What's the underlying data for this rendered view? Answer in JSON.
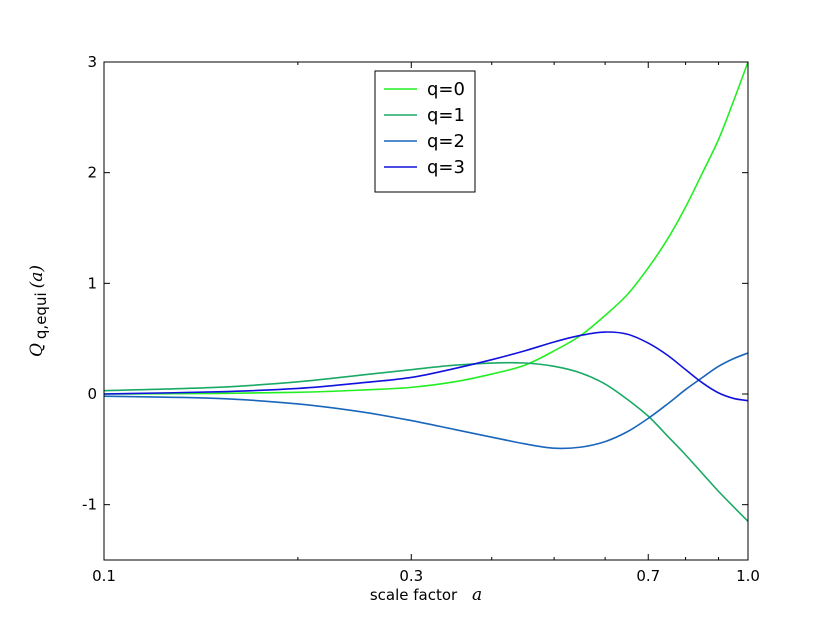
{
  "chart_data": {
    "type": "line",
    "xscale": "log",
    "xlim": [
      0.1,
      1.0
    ],
    "ylim": [
      -1.5,
      3
    ],
    "xticks": [
      0.1,
      0.3,
      0.7,
      1.0
    ],
    "xtick_labels": [
      "0.1",
      "0.3",
      "0.7",
      "1.0"
    ],
    "xminor_ticks": [
      0.2,
      0.4,
      0.5,
      0.6,
      0.8,
      0.9
    ],
    "yticks": [
      -1,
      0,
      1,
      2,
      3
    ],
    "ytick_labels": [
      "-1",
      "0",
      "1",
      "2",
      "3"
    ],
    "xlabel": "scale factor",
    "xlabel_math": "a",
    "ylabel": "Q_{q,equi}(a)",
    "ylabel_main": "Q",
    "ylabel_sub": "q,equi",
    "ylabel_arg": "(a)",
    "grid": false,
    "legend_position": "upper center",
    "series": [
      {
        "name": "q=0",
        "color": "#22ee22",
        "x": [
          0.1,
          0.15,
          0.2,
          0.25,
          0.3,
          0.35,
          0.4,
          0.45,
          0.5,
          0.55,
          0.6,
          0.65,
          0.7,
          0.75,
          0.8,
          0.85,
          0.9,
          0.95,
          1.0
        ],
        "y": [
          0.0,
          0.005,
          0.015,
          0.035,
          0.06,
          0.11,
          0.18,
          0.26,
          0.39,
          0.53,
          0.71,
          0.9,
          1.14,
          1.4,
          1.69,
          2.0,
          2.3,
          2.65,
          3.0
        ]
      },
      {
        "name": "q=1",
        "color": "#1aaa66",
        "x": [
          0.1,
          0.15,
          0.2,
          0.25,
          0.3,
          0.35,
          0.4,
          0.45,
          0.5,
          0.55,
          0.6,
          0.65,
          0.7,
          0.75,
          0.8,
          0.85,
          0.9,
          0.95,
          1.0
        ],
        "y": [
          0.03,
          0.06,
          0.11,
          0.17,
          0.22,
          0.26,
          0.28,
          0.28,
          0.25,
          0.19,
          0.09,
          -0.05,
          -0.2,
          -0.38,
          -0.55,
          -0.72,
          -0.88,
          -1.02,
          -1.15
        ]
      },
      {
        "name": "q=2",
        "color": "#1a66bb",
        "x": [
          0.1,
          0.15,
          0.2,
          0.25,
          0.3,
          0.35,
          0.4,
          0.45,
          0.5,
          0.55,
          0.6,
          0.65,
          0.7,
          0.75,
          0.8,
          0.85,
          0.9,
          0.95,
          1.0
        ],
        "y": [
          -0.02,
          -0.04,
          -0.09,
          -0.16,
          -0.24,
          -0.32,
          -0.39,
          -0.45,
          -0.49,
          -0.48,
          -0.43,
          -0.34,
          -0.22,
          -0.09,
          0.04,
          0.15,
          0.25,
          0.32,
          0.37
        ]
      },
      {
        "name": "q=3",
        "color": "#1111dd",
        "x": [
          0.1,
          0.15,
          0.2,
          0.25,
          0.3,
          0.35,
          0.4,
          0.45,
          0.5,
          0.55,
          0.6,
          0.65,
          0.7,
          0.75,
          0.8,
          0.85,
          0.9,
          0.95,
          1.0
        ],
        "y": [
          0.0,
          0.02,
          0.05,
          0.1,
          0.15,
          0.23,
          0.31,
          0.39,
          0.47,
          0.53,
          0.56,
          0.54,
          0.46,
          0.35,
          0.22,
          0.1,
          0.01,
          -0.04,
          -0.06
        ]
      }
    ]
  }
}
